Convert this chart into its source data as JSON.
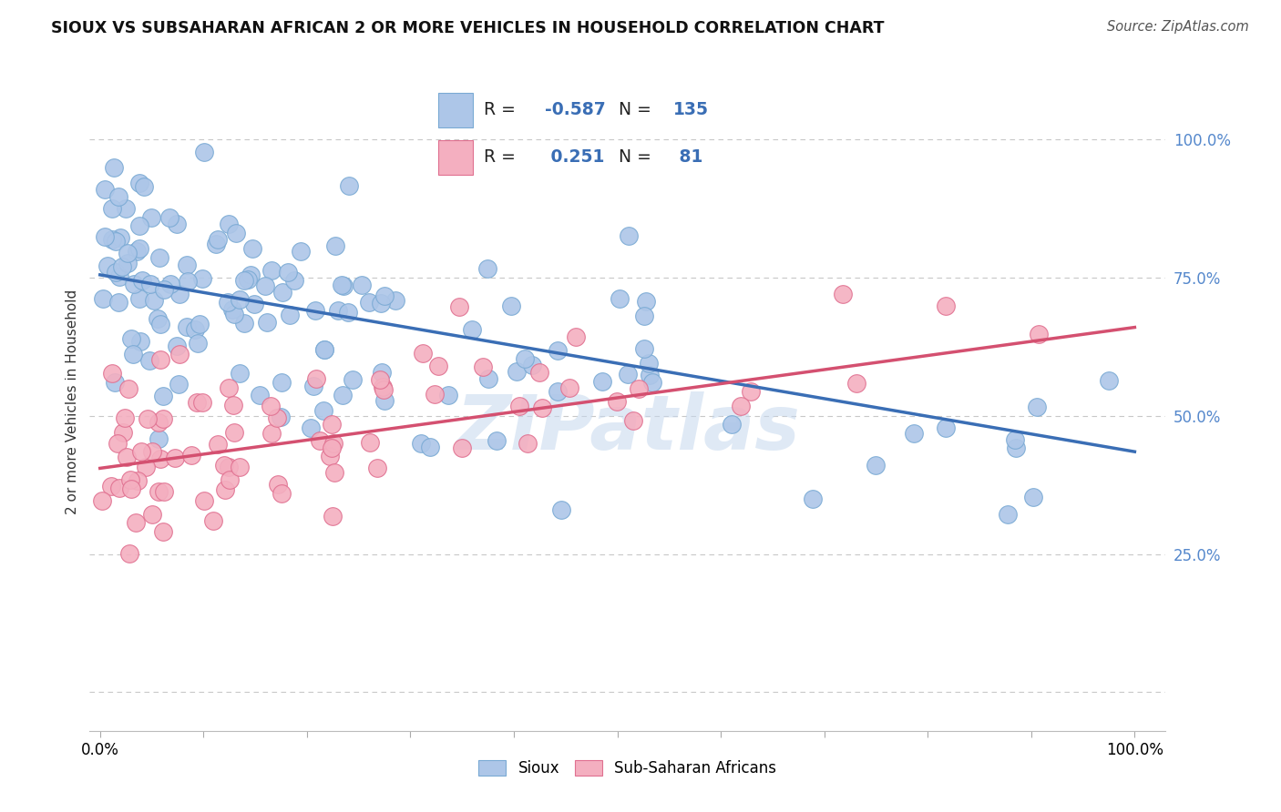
{
  "title": "SIOUX VS SUBSAHARAN AFRICAN 2 OR MORE VEHICLES IN HOUSEHOLD CORRELATION CHART",
  "source": "Source: ZipAtlas.com",
  "ylabel": "2 or more Vehicles in Household",
  "sioux_color": "#adc6e8",
  "sioux_edge": "#7aaad4",
  "subsaharan_color": "#f4afc0",
  "subsaharan_edge": "#e07090",
  "trend_sioux_color": "#3a6eb5",
  "trend_subsaharan_color": "#d45070",
  "watermark": "ZIPatlas",
  "watermark_color": "#c5d8ee",
  "background_color": "#ffffff",
  "grid_color": "#c8c8c8",
  "ytick_color": "#5588cc",
  "R_sioux": "-0.587",
  "N_sioux": "135",
  "R_sub": "0.251",
  "N_sub": "81",
  "sioux_trend_intercept": 0.755,
  "sioux_trend_slope": -0.32,
  "sub_trend_intercept": 0.405,
  "sub_trend_slope": 0.255
}
